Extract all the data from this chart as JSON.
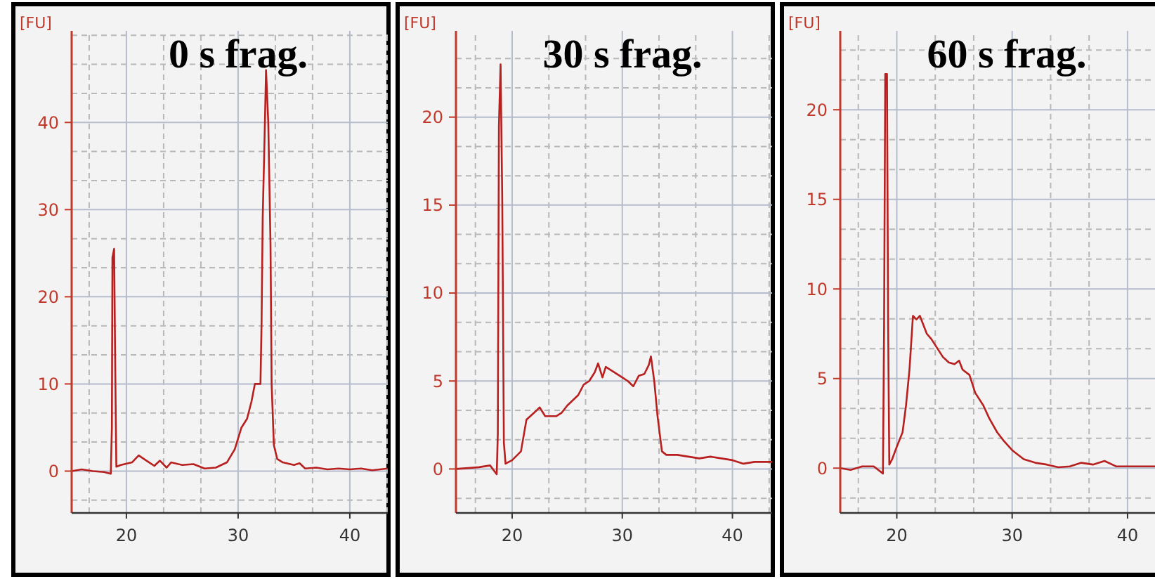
{
  "chart_data": [
    {
      "type": "line",
      "title": "0 s frag.",
      "ylabel": "[FU]",
      "xlim": [
        15.1,
        43.4
      ],
      "ylim": [
        -4.8,
        50.5
      ],
      "xticks": [
        20,
        30,
        40
      ],
      "yticks": [
        0,
        10,
        20,
        30,
        40
      ],
      "grid": true,
      "line_style": "solid",
      "series": [
        {
          "color": "#b81f1f",
          "x": [
            15.1,
            16,
            17,
            18,
            18.6,
            18.7,
            18.75,
            18.9,
            19.0,
            19.1,
            19.5,
            20.5,
            21.1,
            21.8,
            22.5,
            23,
            23.6,
            24,
            25,
            26,
            27,
            28,
            29,
            29.7,
            30.3,
            30.8,
            31.2,
            31.5,
            32,
            32.1,
            32.2,
            32.4,
            32.5,
            32.7,
            32.9,
            33.0,
            33.2,
            33.5,
            34,
            35,
            35.5,
            36,
            37,
            38,
            39,
            40,
            41,
            42,
            43.4
          ],
          "values": [
            0,
            0.2,
            0,
            -0.1,
            -0.3,
            5,
            24.5,
            25.5,
            12,
            0.5,
            0.7,
            1,
            1.8,
            1.2,
            0.6,
            1.2,
            0.4,
            1,
            0.7,
            0.8,
            0.3,
            0.4,
            1,
            2.5,
            5,
            6,
            8,
            10,
            10,
            17,
            29,
            40,
            46,
            40,
            26,
            10,
            3,
            1.4,
            1,
            0.7,
            0.9,
            0.3,
            0.4,
            0.2,
            0.3,
            0.2,
            0.3,
            0.1,
            0.3
          ]
        }
      ]
    },
    {
      "type": "line",
      "title": "30 s frag.",
      "ylabel": "[FU]",
      "xlim": [
        14.9,
        43.6
      ],
      "ylim": [
        -2.5,
        24.9
      ],
      "xticks": [
        20,
        30,
        40
      ],
      "yticks": [
        0,
        5,
        10,
        15,
        20
      ],
      "grid": true,
      "line_style": "solid",
      "series": [
        {
          "color": "#b81f1f",
          "x": [
            14.9,
            16,
            17,
            18,
            18.6,
            18.7,
            18.8,
            18.95,
            19.1,
            19.25,
            19.4,
            20,
            20.8,
            21.3,
            22,
            22.5,
            23,
            24,
            24.5,
            25,
            26,
            26.5,
            27,
            27.5,
            27.8,
            28.2,
            28.5,
            29,
            29.5,
            30,
            30.5,
            31,
            31.5,
            32,
            32.4,
            32.6,
            32.9,
            33.2,
            33.6,
            34,
            35,
            36,
            37,
            38,
            39,
            40,
            41,
            42,
            43.6
          ],
          "values": [
            0,
            0.05,
            0.1,
            0.2,
            -0.3,
            2,
            19.5,
            23,
            15.5,
            1.5,
            0.3,
            0.5,
            1,
            2.8,
            3.2,
            3.5,
            3,
            3,
            3.2,
            3.6,
            4.2,
            4.8,
            5,
            5.5,
            6,
            5.2,
            5.8,
            5.6,
            5.4,
            5.2,
            5,
            4.7,
            5.3,
            5.4,
            5.9,
            6.4,
            5,
            3,
            1,
            0.8,
            0.8,
            0.7,
            0.6,
            0.7,
            0.6,
            0.5,
            0.3,
            0.4,
            0.4
          ]
        }
      ]
    },
    {
      "type": "line",
      "title": "60 s frag.",
      "ylabel": "[FU]",
      "xlim": [
        15.1,
        42.5
      ],
      "ylim": [
        -2.5,
        24.4
      ],
      "xticks": [
        20,
        30,
        40
      ],
      "yticks": [
        0,
        5,
        10,
        15,
        20
      ],
      "grid": true,
      "line_style": "solid",
      "series": [
        {
          "color": "#b81f1f",
          "x": [
            15.1,
            16,
            17,
            18,
            18.8,
            18.9,
            19.0,
            19.15,
            19.25,
            19.35,
            19.6,
            20,
            20.5,
            20.8,
            21.1,
            21.4,
            21.7,
            22,
            22.3,
            22.6,
            23,
            23.5,
            24,
            24.5,
            25,
            25.4,
            25.7,
            26.3,
            26.8,
            27.5,
            28,
            28.7,
            29.3,
            30,
            31,
            32,
            33,
            34,
            35,
            36,
            37,
            38,
            39,
            40,
            41,
            42.5
          ],
          "values": [
            0,
            -0.1,
            0.1,
            0.1,
            -0.3,
            8,
            22,
            22,
            8,
            0.2,
            0.5,
            1.2,
            2,
            3.5,
            5.5,
            8.5,
            8.3,
            8.5,
            8,
            7.5,
            7.2,
            6.7,
            6.2,
            5.9,
            5.8,
            6,
            5.5,
            5.2,
            4.2,
            3.5,
            2.8,
            2,
            1.5,
            1,
            0.5,
            0.3,
            0.2,
            0.05,
            0.1,
            0.3,
            0.2,
            0.4,
            0.1,
            0.1,
            0.1,
            0.1
          ]
        }
      ]
    }
  ]
}
